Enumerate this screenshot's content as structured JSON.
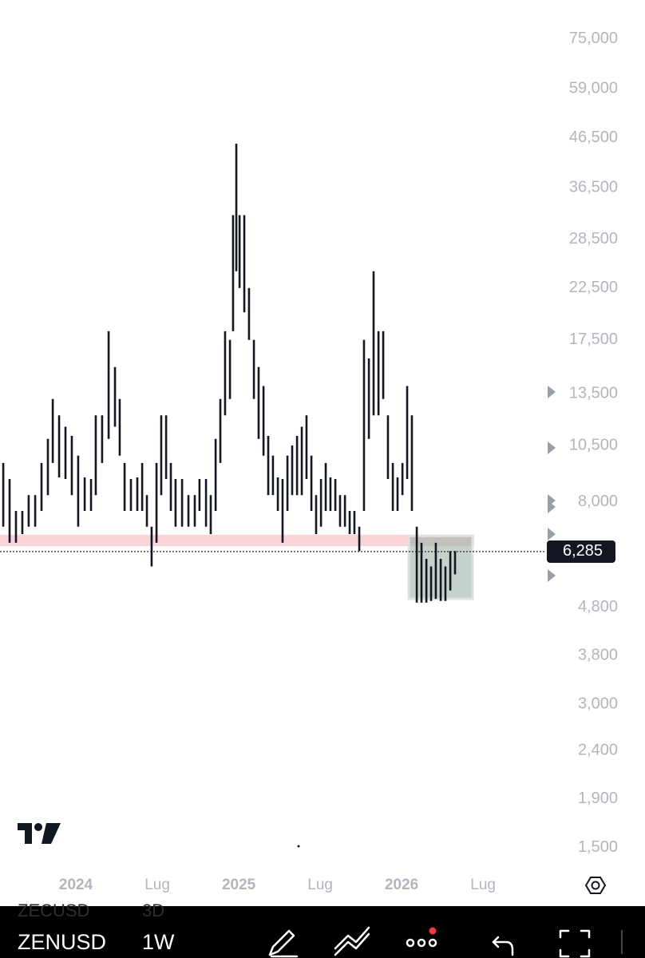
{
  "chart_data": {
    "type": "range-bar",
    "log_scale": true,
    "color": "#131722",
    "xlim": [
      2023.534,
      2026.867
    ],
    "ylim": [
      1346,
      90600
    ],
    "xticks": [
      {
        "value": 2024,
        "label": "2024"
      },
      {
        "value": 2024.5,
        "label": "Lug"
      },
      {
        "value": 2025,
        "label": "2025"
      },
      {
        "value": 2025.5,
        "label": "Lug"
      },
      {
        "value": 2026,
        "label": "2026"
      },
      {
        "value": 2026.5,
        "label": "Lug"
      }
    ],
    "yticks": [
      {
        "value": 75000,
        "label": "75,000"
      },
      {
        "value": 59000,
        "label": "59,000"
      },
      {
        "value": 46500,
        "label": "46,500"
      },
      {
        "value": 36500,
        "label": "36,500"
      },
      {
        "value": 28500,
        "label": "28,500"
      },
      {
        "value": 22500,
        "label": "22,500"
      },
      {
        "value": 17500,
        "label": "17,500"
      },
      {
        "value": 13500,
        "label": "13,500"
      },
      {
        "value": 10500,
        "label": "10,500"
      },
      {
        "value": 8000,
        "label": "8,000"
      },
      {
        "value": 4800,
        "label": "4,800"
      },
      {
        "value": 3800,
        "label": "3,800"
      },
      {
        "value": 3000,
        "label": "3,000"
      },
      {
        "value": 2400,
        "label": "2,400"
      },
      {
        "value": 1900,
        "label": "1,900"
      },
      {
        "value": 1500,
        "label": "1,500"
      }
    ],
    "last_price": {
      "value": 6285,
      "label": "6,285"
    },
    "highlight_band": [
      6450,
      6820
    ],
    "box": {
      "x": [
        2026.044,
        2026.436
      ],
      "y": [
        5000,
        6780
      ]
    },
    "x": [
      2023.554,
      2023.593,
      2023.632,
      2023.671,
      2023.71,
      2023.75,
      2023.789,
      2023.828,
      2023.858,
      2023.897,
      2023.936,
      2023.975,
      2024.014,
      2024.054,
      2024.093,
      2024.122,
      2024.161,
      2024.201,
      2024.24,
      2024.269,
      2024.299,
      2024.338,
      2024.377,
      2024.407,
      2024.436,
      2024.465,
      2024.495,
      2024.524,
      2024.554,
      2024.583,
      2024.612,
      2024.652,
      2024.691,
      2024.73,
      2024.759,
      2024.799,
      2024.828,
      2024.858,
      2024.887,
      2024.916,
      2024.946,
      2024.965,
      2024.985,
      2025.005,
      2025.034,
      2025.063,
      2025.093,
      2025.122,
      2025.152,
      2025.181,
      2025.21,
      2025.24,
      2025.269,
      2025.299,
      2025.328,
      2025.358,
      2025.387,
      2025.416,
      2025.446,
      2025.475,
      2025.505,
      2025.534,
      2025.563,
      2025.593,
      2025.622,
      2025.652,
      2025.681,
      2025.71,
      2025.74,
      2025.769,
      2025.799,
      2025.828,
      2025.858,
      2025.887,
      2025.916,
      2025.946,
      2025.975,
      2026.005,
      2026.034,
      2026.063,
      2026.093,
      2026.122,
      2026.152,
      2026.181,
      2026.21,
      2026.24,
      2026.269,
      2026.299,
      2026.328
    ],
    "high": [
      9650,
      8930,
      7650,
      7650,
      8260,
      8260,
      9650,
      10840,
      13150,
      12150,
      11500,
      11000,
      10000,
      9000,
      8930,
      12150,
      12150,
      18250,
      15350,
      13150,
      9650,
      8930,
      9000,
      9650,
      8260,
      7090,
      9650,
      12150,
      12150,
      9650,
      8930,
      8930,
      8260,
      8260,
      8930,
      8930,
      8260,
      10840,
      13150,
      18250,
      17500,
      32000,
      45200,
      32000,
      32000,
      22500,
      17500,
      15350,
      14000,
      11000,
      10000,
      9000,
      8930,
      10000,
      10500,
      11000,
      11500,
      12150,
      10000,
      8260,
      8930,
      9650,
      9000,
      8930,
      8260,
      8260,
      7650,
      7650,
      7090,
      17500,
      16000,
      24400,
      18250,
      18250,
      12150,
      9650,
      9000,
      9650,
      14000,
      12150,
      7090,
      6560,
      6070,
      5850,
      6560,
      6070,
      5850,
      6300,
      6300
    ],
    "low": [
      7090,
      6560,
      6560,
      6840,
      7090,
      7090,
      7650,
      8260,
      9650,
      9000,
      8930,
      8260,
      7090,
      7650,
      7650,
      8260,
      9650,
      10840,
      11500,
      10000,
      7650,
      7650,
      7650,
      7650,
      7090,
      5850,
      6560,
      8260,
      8930,
      7650,
      7090,
      7090,
      7090,
      7090,
      7650,
      7090,
      6840,
      7650,
      9650,
      12150,
      13150,
      18250,
      24400,
      22500,
      20000,
      17500,
      13150,
      10840,
      10000,
      8260,
      8260,
      7650,
      6560,
      7650,
      8260,
      8260,
      8260,
      8930,
      7650,
      6840,
      7090,
      7650,
      7650,
      7650,
      7090,
      7090,
      6840,
      6840,
      6300,
      7650,
      10840,
      12150,
      12150,
      13150,
      8930,
      7650,
      7650,
      8260,
      8930,
      7650,
      4910,
      4910,
      4910,
      4950,
      5000,
      4950,
      4950,
      5210,
      5630
    ]
  },
  "toolbar": {
    "symbol": "ZENUSD",
    "interval": "1W",
    "previous_symbol": "ZECUSD",
    "previous_interval": "3D"
  }
}
